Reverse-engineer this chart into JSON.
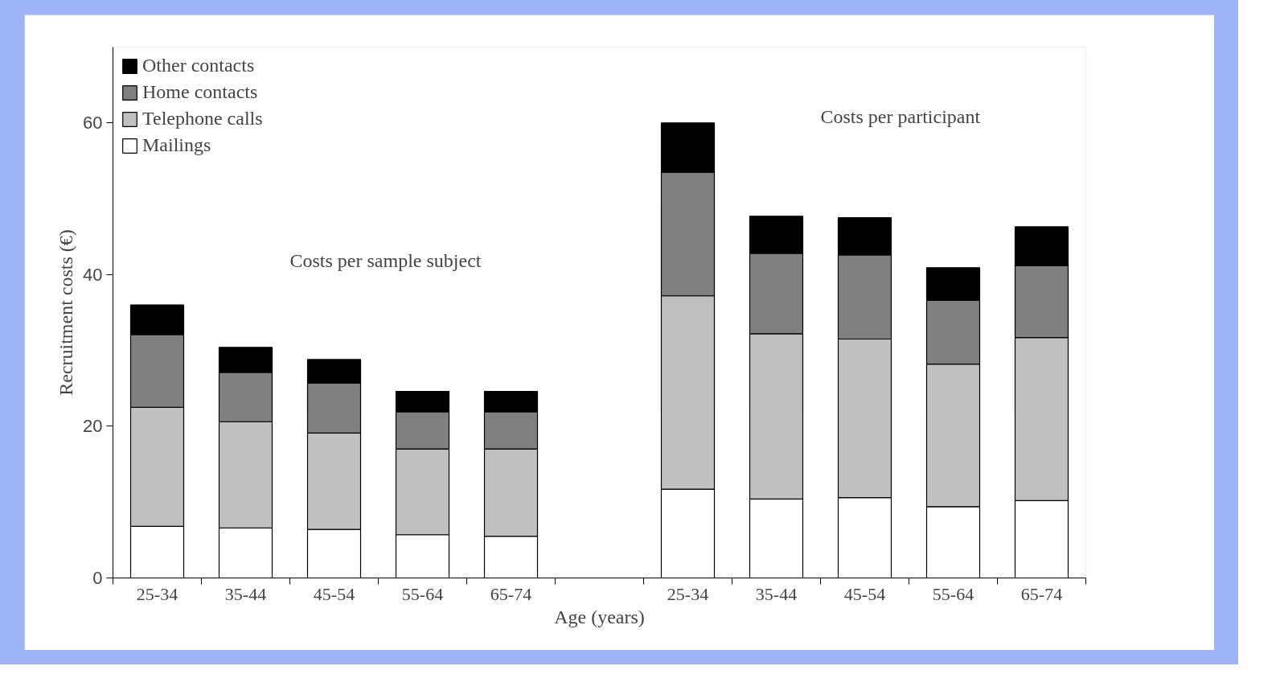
{
  "chart_data": {
    "type": "bar",
    "stacked": true,
    "xlabel": "Age (years)",
    "ylabel": "Recruitment costs (€)",
    "categories": [
      "25-34",
      "35-44",
      "45-54",
      "55-64",
      "65-74",
      null,
      "25-34",
      "35-44",
      "45-54",
      "55-64",
      "65-74"
    ],
    "series": [
      {
        "name": "Mailings",
        "color": "#ffffff",
        "values": [
          6.8,
          6.6,
          6.4,
          5.7,
          5.5,
          null,
          11.7,
          10.4,
          10.6,
          9.4,
          10.2
        ]
      },
      {
        "name": "Telephone calls",
        "color": "#c0c0c0",
        "values": [
          15.7,
          14.0,
          12.7,
          11.3,
          11.5,
          null,
          25.5,
          21.8,
          20.9,
          18.8,
          21.5
        ]
      },
      {
        "name": "Home contacts",
        "color": "#808080",
        "values": [
          9.6,
          6.5,
          6.6,
          4.9,
          4.9,
          null,
          16.3,
          10.6,
          11.1,
          8.4,
          9.5
        ]
      },
      {
        "name": "Other contacts",
        "color": "#000000",
        "values": [
          3.9,
          3.3,
          3.1,
          2.7,
          2.7,
          null,
          6.5,
          4.9,
          4.9,
          4.3,
          5.1
        ]
      }
    ],
    "ylim": [
      0,
      70
    ],
    "yticks": [
      0,
      20,
      40,
      60
    ],
    "grid": false,
    "legend": "top left",
    "annotations": [
      "Costs per sample subject",
      "Costs per participant"
    ]
  }
}
